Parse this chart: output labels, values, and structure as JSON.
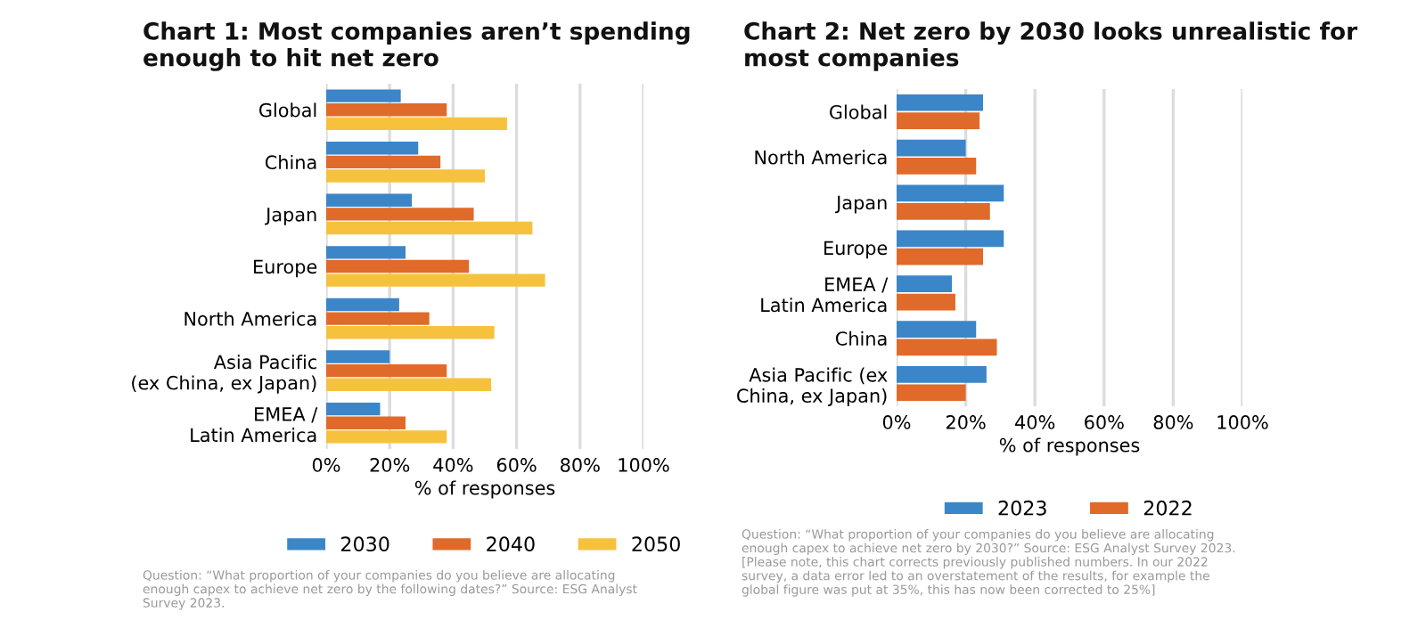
{
  "chart_data": [
    {
      "type": "bar",
      "orientation": "horizontal",
      "title": "Chart 1: Most companies aren’t spending enough to hit net zero",
      "categories": [
        "Global",
        "China",
        "Japan",
        "Europe",
        "North America",
        "Asia Pacific\n(ex China, ex Japan)",
        "EMEA /\nLatin America"
      ],
      "series": [
        {
          "name": "2030",
          "color": "#3a86c8",
          "values": [
            23.5,
            29,
            27,
            25,
            23,
            20,
            17
          ]
        },
        {
          "name": "2040",
          "color": "#e06a2a",
          "values": [
            38,
            36,
            46.5,
            45,
            32.5,
            38,
            25
          ]
        },
        {
          "name": "2050",
          "color": "#f6c23e",
          "values": [
            57,
            50,
            65,
            69,
            53,
            52,
            38
          ]
        }
      ],
      "xlim": [
        0,
        100
      ],
      "xticks": [
        {
          "value": 0,
          "label": "0%"
        },
        {
          "value": 20,
          "label": "20%"
        },
        {
          "value": 40,
          "label": "40%"
        },
        {
          "value": 60,
          "label": "60%"
        },
        {
          "value": 80,
          "label": "80%"
        },
        {
          "value": 100,
          "label": "100%"
        }
      ],
      "xlabel": "% of responses",
      "grid": "x",
      "legend": "bottom",
      "annotations": [
        "Question: “What proportion of your companies do you believe are allocating enough capex to achieve net zero by the following dates?” Source: ESG Analyst Survey 2023."
      ]
    },
    {
      "type": "bar",
      "orientation": "horizontal",
      "title": "Chart 2: Net zero by 2030 looks unrealistic for most companies",
      "categories": [
        "Global",
        "North America",
        "Japan",
        "Europe",
        "EMEA /\nLatin America",
        "China",
        "Asia Pacific (ex\nChina, ex Japan)"
      ],
      "series": [
        {
          "name": "2023",
          "color": "#3a86c8",
          "values": [
            25,
            20,
            31,
            31,
            16,
            23,
            26
          ]
        },
        {
          "name": "2022",
          "color": "#e06a2a",
          "values": [
            24,
            23,
            27,
            25,
            17,
            29,
            20
          ]
        }
      ],
      "xlim": [
        0,
        100
      ],
      "xticks": [
        {
          "value": 0,
          "label": "0%"
        },
        {
          "value": 20,
          "label": "20%"
        },
        {
          "value": 40,
          "label": "40%"
        },
        {
          "value": 60,
          "label": "60%"
        },
        {
          "value": 80,
          "label": "80%"
        },
        {
          "value": 100,
          "label": "100%"
        }
      ],
      "xlabel": "% of responses",
      "grid": "x",
      "legend": "bottom",
      "annotations": [
        "Question: “What proportion of your companies do you believe are allocating enough capex to achieve net zero by 2030?” Source: ESG Analyst Survey 2023. [Please note, this chart corrects previously published numbers. In our 2022 survey, a data error led to an overstatement of the results, for example the global figure was put at 35%, this has now been corrected to 25%]"
      ]
    }
  ]
}
